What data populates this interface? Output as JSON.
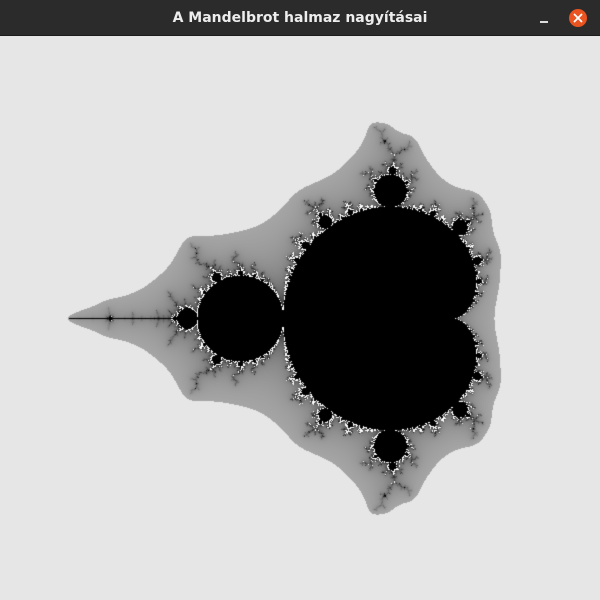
{
  "window": {
    "title": "A Mandelbrot halmaz nagyításai",
    "buttons": [
      {
        "name": "minimize",
        "icon": "minimize-icon"
      },
      {
        "name": "close",
        "icon": "close-icon",
        "color": "#e95420"
      }
    ]
  },
  "fractal": {
    "set": "Mandelbrot",
    "background_color": "#e6e6e6",
    "set_color": "#000000",
    "colors": [
      "#000000",
      "#ffffff",
      "#e6e6e6"
    ]
  }
}
